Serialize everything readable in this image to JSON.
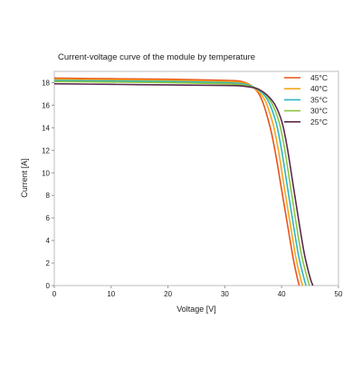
{
  "chart_data": {
    "type": "line",
    "title": "Current-voltage curve of the module by temperature",
    "xlabel": "Voltage [V]",
    "ylabel": "Current [A]",
    "xlim": [
      0,
      50
    ],
    "ylim": [
      0,
      19
    ],
    "x_ticks": [
      0,
      10,
      20,
      30,
      40,
      50
    ],
    "y_ticks": [
      0,
      2,
      4,
      6,
      8,
      10,
      12,
      14,
      16,
      18
    ],
    "grid": false,
    "legend": "top-right",
    "series": [
      {
        "name": "45°C",
        "color": "#e8541b",
        "x": [
          0,
          10,
          20,
          30,
          33,
          35,
          36.5,
          38,
          39,
          40,
          41,
          42,
          42.7,
          43.1
        ],
        "y": [
          18.4,
          18.35,
          18.3,
          18.2,
          18.1,
          17.6,
          16.5,
          14.0,
          11.5,
          8.5,
          5.5,
          2.5,
          0.8,
          0
        ]
      },
      {
        "name": "40°C",
        "color": "#f2a81d",
        "x": [
          0,
          10,
          20,
          30,
          33,
          35,
          37,
          38.5,
          39.5,
          40.5,
          41.5,
          42.5,
          43.3,
          43.7
        ],
        "y": [
          18.3,
          18.25,
          18.2,
          18.1,
          18.0,
          17.6,
          16.5,
          14.3,
          11.8,
          8.6,
          5.5,
          2.5,
          0.7,
          0
        ]
      },
      {
        "name": "35°C",
        "color": "#2fb5c4",
        "x": [
          0,
          10,
          20,
          30,
          33,
          35.5,
          37.5,
          39,
          40,
          41,
          42,
          43,
          43.9,
          44.3
        ],
        "y": [
          18.2,
          18.15,
          18.1,
          18.0,
          17.9,
          17.5,
          16.5,
          14.5,
          12.0,
          8.8,
          5.6,
          2.6,
          0.7,
          0
        ]
      },
      {
        "name": "30°C",
        "color": "#8cc63f",
        "x": [
          0,
          10,
          20,
          30,
          33,
          36,
          38,
          39.5,
          40.5,
          41.5,
          42.5,
          43.5,
          44.5,
          44.9
        ],
        "y": [
          18.1,
          18.05,
          18.0,
          17.9,
          17.8,
          17.4,
          16.4,
          14.6,
          12.2,
          9.0,
          5.7,
          2.7,
          0.7,
          0
        ]
      },
      {
        "name": "25°C",
        "color": "#5b2a4e",
        "x": [
          0,
          10,
          20,
          30,
          33,
          36,
          38.5,
          40,
          41,
          42,
          43,
          44,
          45,
          45.5
        ],
        "y": [
          17.9,
          17.85,
          17.8,
          17.75,
          17.7,
          17.4,
          16.3,
          14.6,
          12.2,
          9.0,
          5.8,
          2.8,
          0.7,
          0
        ]
      }
    ]
  }
}
